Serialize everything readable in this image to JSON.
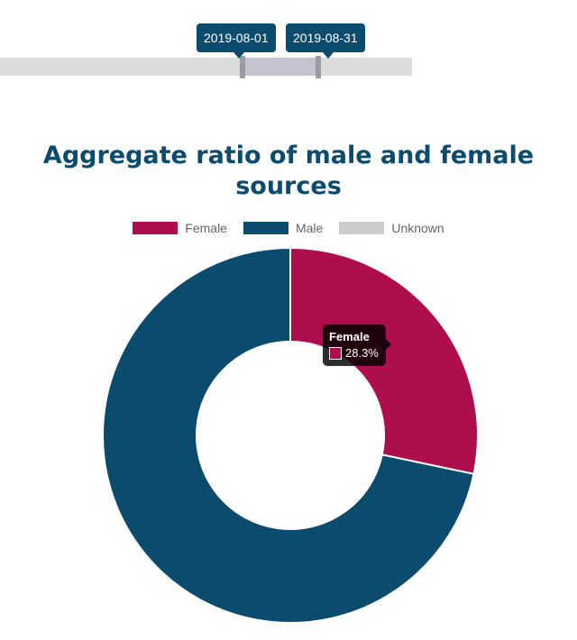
{
  "date_range": {
    "start_label": "2019-08-01",
    "end_label": "2019-08-31"
  },
  "colors": {
    "female": "#ae0d4e",
    "male": "#0b4c6e",
    "unknown": "#cccccc",
    "title": "#0b4c6e"
  },
  "tooltip": {
    "title": "Female",
    "value": "28.3%"
  },
  "chart_data": {
    "type": "pie",
    "subtype": "doughnut",
    "title": "Aggregate ratio of male and female sources",
    "legend_position": "top",
    "categories": [
      "Female",
      "Male",
      "Unknown"
    ],
    "values": [
      28.3,
      71.7,
      0
    ],
    "unit": "%"
  }
}
